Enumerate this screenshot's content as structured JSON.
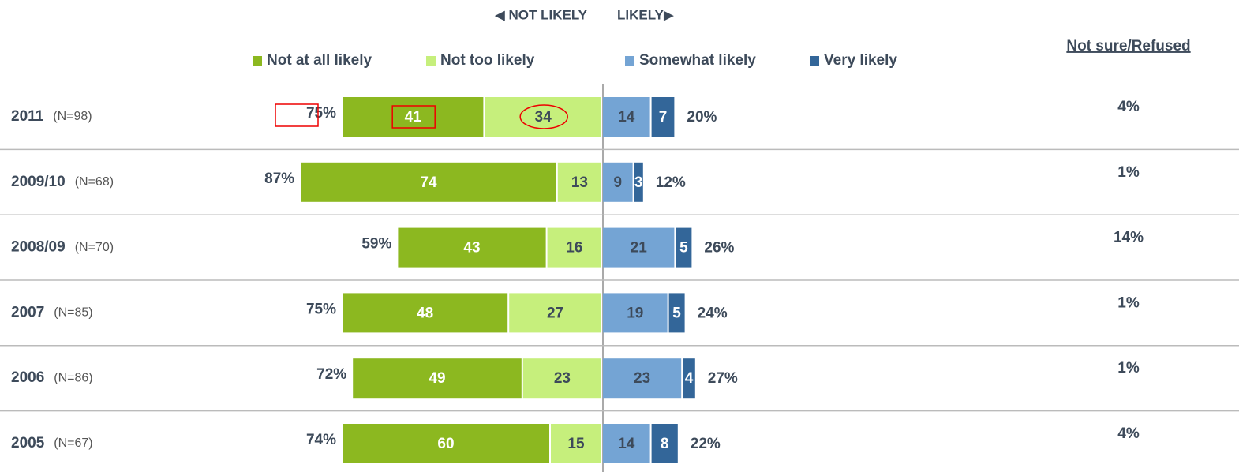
{
  "chart_data": {
    "type": "diverging_bar",
    "header_left": "◀ NOT LIKELY",
    "header_right": "LIKELY▶",
    "not_sure_title": "Not sure/Refused",
    "categories": [
      "2011",
      "2009/10",
      "2008/09",
      "2007",
      "2006",
      "2005"
    ],
    "sample_sizes": [
      "(N=98)",
      "(N=68)",
      "(N=70)",
      "(N=85)",
      "(N=86)",
      "(N=67)"
    ],
    "series": [
      {
        "name": "Not at all likely",
        "color": "#8cb820",
        "side": "left",
        "values": [
          41,
          74,
          43,
          48,
          49,
          60
        ]
      },
      {
        "name": "Not too likely",
        "color": "#c6ef7c",
        "side": "left",
        "values": [
          34,
          13,
          16,
          27,
          23,
          15
        ]
      },
      {
        "name": "Somewhat likely",
        "color": "#74a4d4",
        "side": "right",
        "values": [
          14,
          9,
          21,
          19,
          23,
          14
        ]
      },
      {
        "name": "Very likely",
        "color": "#336699",
        "side": "right",
        "values": [
          7,
          3,
          5,
          5,
          4,
          8
        ]
      }
    ],
    "not_likely_total": {
      "values": [
        75,
        87,
        59,
        75,
        72,
        74
      ],
      "value_labels": [
        "75%",
        "87%",
        "59%",
        "75%",
        "72%",
        "74%"
      ]
    },
    "likely_total": {
      "values": [
        20,
        12,
        26,
        24,
        27,
        22
      ],
      "value_labels": [
        "20%",
        "12%",
        "26%",
        "24%",
        "27%",
        "22%"
      ]
    },
    "not_sure": {
      "values": [
        4,
        1,
        14,
        1,
        1,
        4
      ],
      "value_labels": [
        "4%",
        "1%",
        "14%",
        "1%",
        "1%",
        "4%"
      ]
    }
  }
}
